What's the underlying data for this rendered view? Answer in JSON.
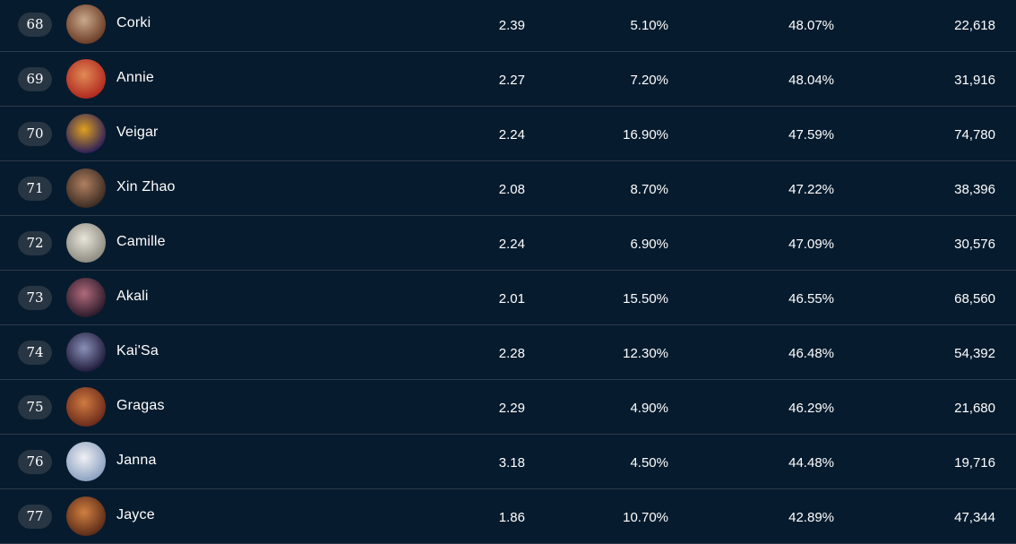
{
  "rows": [
    {
      "rank": "68",
      "name": "Corki",
      "kda": "2.39",
      "pick_rate": "5.10%",
      "win_rate": "48.07%",
      "games": "22,618",
      "avatar_colors": [
        "#c9a98a",
        "#6b3b25"
      ]
    },
    {
      "rank": "69",
      "name": "Annie",
      "kda": "2.27",
      "pick_rate": "7.20%",
      "win_rate": "48.04%",
      "games": "31,916",
      "avatar_colors": [
        "#e08a55",
        "#b0281e"
      ]
    },
    {
      "rank": "70",
      "name": "Veigar",
      "kda": "2.24",
      "pick_rate": "16.90%",
      "win_rate": "47.59%",
      "games": "74,780",
      "avatar_colors": [
        "#e0a020",
        "#2a1e5a"
      ]
    },
    {
      "rank": "71",
      "name": "Xin Zhao",
      "kda": "2.08",
      "pick_rate": "8.70%",
      "win_rate": "47.22%",
      "games": "38,396",
      "avatar_colors": [
        "#b08060",
        "#3a2a22"
      ]
    },
    {
      "rank": "72",
      "name": "Camille",
      "kda": "2.24",
      "pick_rate": "6.90%",
      "win_rate": "47.09%",
      "games": "30,576",
      "avatar_colors": [
        "#e8e4da",
        "#8c8a80"
      ]
    },
    {
      "rank": "73",
      "name": "Akali",
      "kda": "2.01",
      "pick_rate": "15.50%",
      "win_rate": "46.55%",
      "games": "68,560",
      "avatar_colors": [
        "#b06a7a",
        "#2a1a2a"
      ]
    },
    {
      "rank": "74",
      "name": "Kai'Sa",
      "kda": "2.28",
      "pick_rate": "12.30%",
      "win_rate": "46.48%",
      "games": "54,392",
      "avatar_colors": [
        "#8a90b8",
        "#1e1a3a"
      ]
    },
    {
      "rank": "75",
      "name": "Gragas",
      "kda": "2.29",
      "pick_rate": "4.90%",
      "win_rate": "46.29%",
      "games": "21,680",
      "avatar_colors": [
        "#d07a40",
        "#6a2a1a"
      ]
    },
    {
      "rank": "76",
      "name": "Janna",
      "kda": "3.18",
      "pick_rate": "4.50%",
      "win_rate": "44.48%",
      "games": "19,716",
      "avatar_colors": [
        "#f0f0f4",
        "#8aa0c0"
      ]
    },
    {
      "rank": "77",
      "name": "Jayce",
      "kda": "1.86",
      "pick_rate": "10.70%",
      "win_rate": "42.89%",
      "games": "47,344",
      "avatar_colors": [
        "#d08040",
        "#5a2a18"
      ]
    }
  ]
}
